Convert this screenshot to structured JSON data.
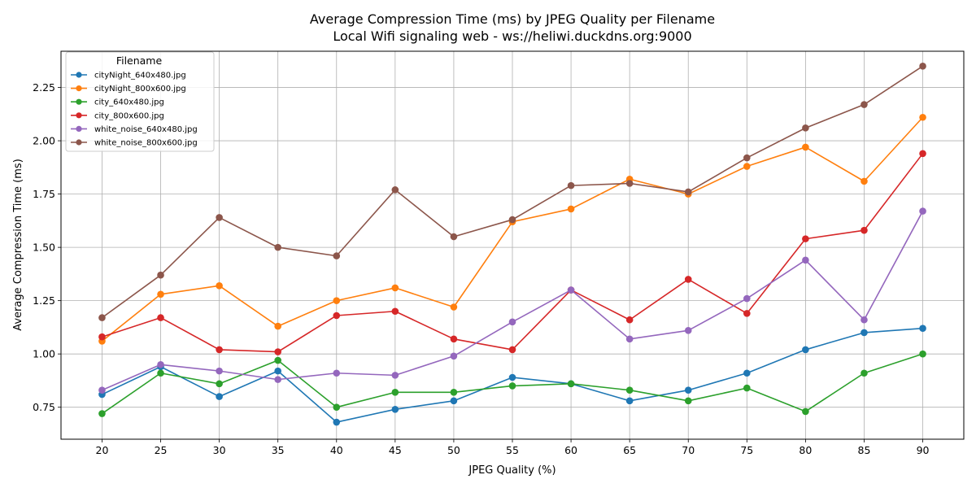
{
  "chart_data": {
    "type": "line",
    "title": "Average Compression Time (ms) by JPEG Quality per Filename",
    "subtitle": "Local Wifi signaling web - ws://heliwi.duckdns.org:9000",
    "xlabel": "JPEG Quality (%)",
    "ylabel": "Average Compression Time (ms)",
    "x": [
      20,
      25,
      30,
      35,
      40,
      45,
      50,
      55,
      60,
      65,
      70,
      75,
      80,
      85,
      90
    ],
    "x_tick_labels": [
      "20",
      "25",
      "30",
      "35",
      "40",
      "45",
      "50",
      "55",
      "60",
      "65",
      "70",
      "75",
      "80",
      "85",
      "90"
    ],
    "xlim": [
      16.5,
      93.5
    ],
    "ylim": [
      0.6,
      2.42
    ],
    "y_ticks": [
      0.75,
      1.0,
      1.25,
      1.5,
      1.75,
      2.0,
      2.25
    ],
    "y_tick_labels": [
      "0.75",
      "1.00",
      "1.25",
      "1.50",
      "1.75",
      "2.00",
      "2.25"
    ],
    "grid": true,
    "legend": {
      "title": "Filename",
      "placement": "upper left"
    },
    "series": [
      {
        "name": "cityNight_640x480.jpg",
        "color": "#1f77b4",
        "values": [
          0.81,
          0.94,
          0.8,
          0.92,
          0.68,
          0.74,
          0.78,
          0.89,
          0.86,
          0.78,
          0.83,
          0.91,
          1.02,
          1.1,
          1.12
        ]
      },
      {
        "name": "cityNight_800x600.jpg",
        "color": "#ff7f0e",
        "values": [
          1.06,
          1.28,
          1.32,
          1.13,
          1.25,
          1.31,
          1.22,
          1.62,
          1.68,
          1.82,
          1.75,
          1.88,
          1.97,
          1.81,
          2.11
        ]
      },
      {
        "name": "city_640x480.jpg",
        "color": "#2ca02c",
        "values": [
          0.72,
          0.91,
          0.86,
          0.97,
          0.75,
          0.82,
          0.82,
          0.85,
          0.86,
          0.83,
          0.78,
          0.84,
          0.73,
          0.91,
          1.0
        ]
      },
      {
        "name": "city_800x600.jpg",
        "color": "#d62728",
        "values": [
          1.08,
          1.17,
          1.02,
          1.01,
          1.18,
          1.2,
          1.07,
          1.02,
          1.3,
          1.16,
          1.35,
          1.19,
          1.54,
          1.58,
          1.94
        ]
      },
      {
        "name": "white_noise_640x480.jpg",
        "color": "#9467bd",
        "values": [
          0.83,
          0.95,
          0.92,
          0.88,
          0.91,
          0.9,
          0.99,
          1.15,
          1.3,
          1.07,
          1.11,
          1.26,
          1.44,
          1.16,
          1.67
        ]
      },
      {
        "name": "white_noise_800x600.jpg",
        "color": "#8c564b",
        "values": [
          1.17,
          1.37,
          1.64,
          1.5,
          1.46,
          1.77,
          1.55,
          1.63,
          1.79,
          1.8,
          1.76,
          1.92,
          2.06,
          2.17,
          2.35
        ]
      }
    ]
  }
}
